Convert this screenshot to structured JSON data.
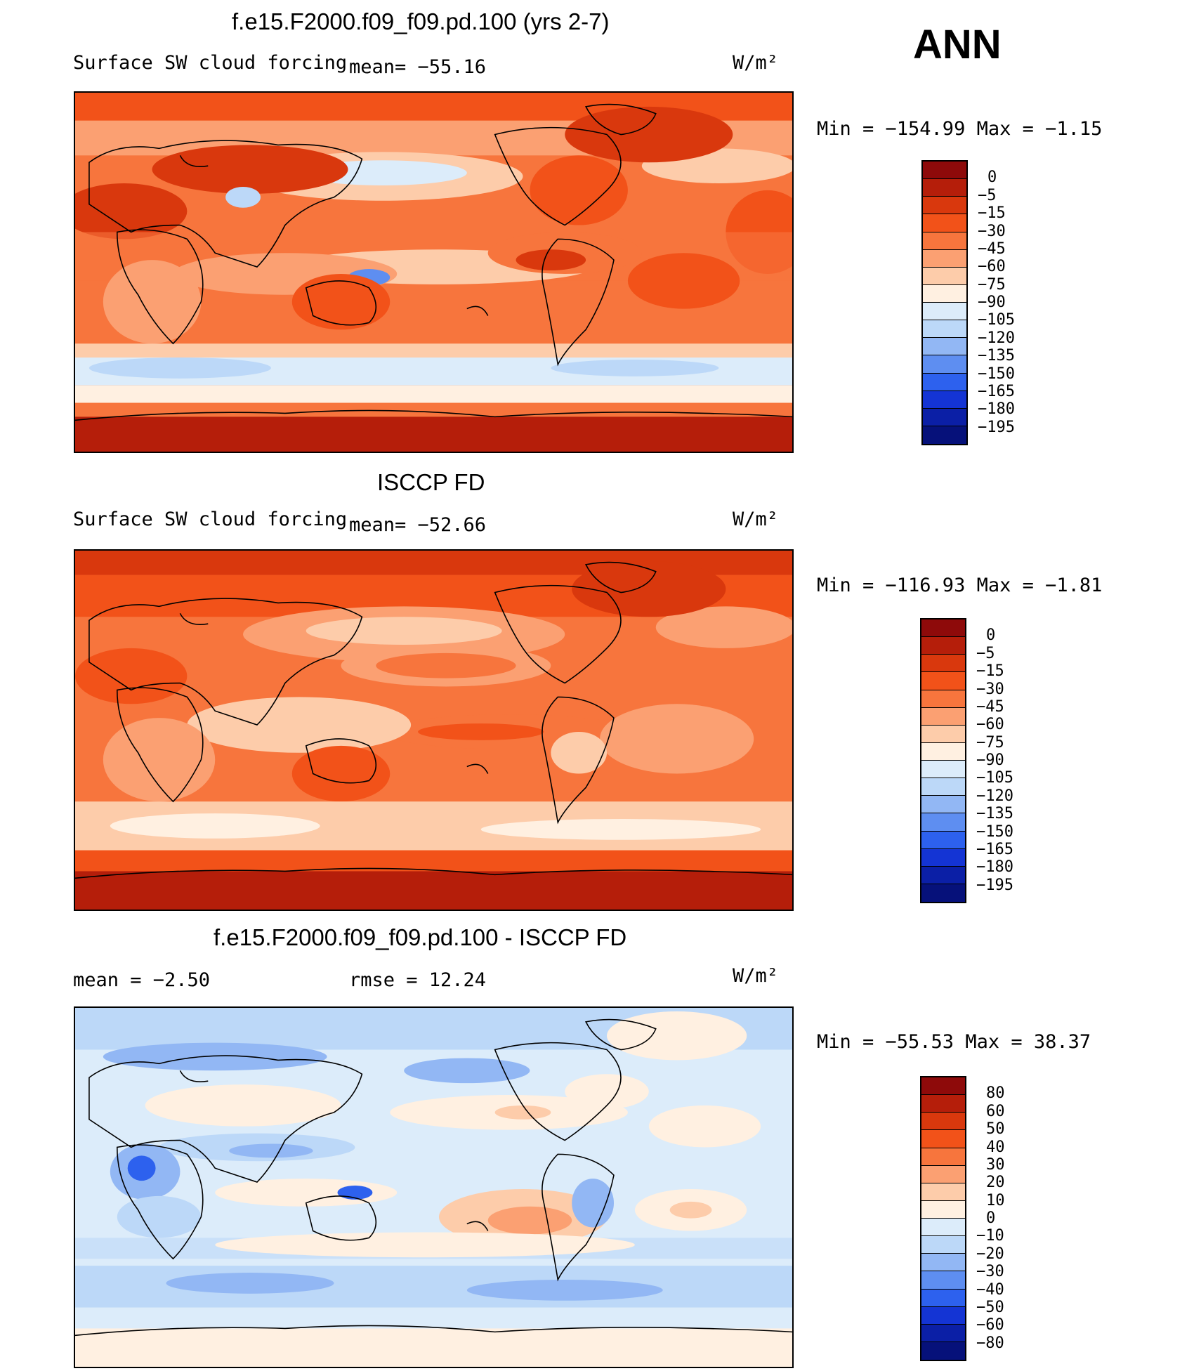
{
  "annotation": "ANN",
  "units_label": "W/m²",
  "panels": [
    {
      "title": "f.e15.F2000.f09_f09.pd.100 (yrs 2-7)",
      "left_label": "Surface  SW  cloud  forcing",
      "center_label": "mean=  −55.16",
      "units": "W/m²",
      "minmax": "Min  =  −154.99  Max  =   −1.15",
      "colorbar": {
        "colors": [
          "#8e0a0a",
          "#b51e0a",
          "#d9380d",
          "#f25219",
          "#f7753d",
          "#fba072",
          "#fdccaa",
          "#fff0e1",
          "#dcecfa",
          "#bcd8f8",
          "#92b7f4",
          "#5e8ef1",
          "#2d61ee",
          "#1434d4",
          "#0b1fa6",
          "#06117a"
        ],
        "labels": [
          "0",
          "−5",
          "−15",
          "−30",
          "−45",
          "−60",
          "−75",
          "−90",
          "−105",
          "−120",
          "−135",
          "−150",
          "−165",
          "−180",
          "−195"
        ]
      }
    },
    {
      "title": "ISCCP FD",
      "left_label": "Surface  SW  cloud  forcing",
      "center_label": "mean=  −52.66",
      "units": "W/m²",
      "minmax": "Min  =  −116.93  Max  =   −1.81",
      "colorbar": {
        "colors": [
          "#8e0a0a",
          "#b51e0a",
          "#d9380d",
          "#f25219",
          "#f7753d",
          "#fba072",
          "#fdccaa",
          "#fff0e1",
          "#dcecfa",
          "#bcd8f8",
          "#92b7f4",
          "#5e8ef1",
          "#2d61ee",
          "#1434d4",
          "#0b1fa6",
          "#06117a"
        ],
        "labels": [
          "0",
          "−5",
          "−15",
          "−30",
          "−45",
          "−60",
          "−75",
          "−90",
          "−105",
          "−120",
          "−135",
          "−150",
          "−165",
          "−180",
          "−195"
        ]
      }
    },
    {
      "title": "f.e15.F2000.f09_f09.pd.100 - ISCCP FD",
      "left_label": "mean  =   −2.50",
      "center_label": "rmse  =   12.24",
      "units": "W/m²",
      "minmax": "Min  =  −55.53  Max  =   38.37",
      "colorbar": {
        "colors": [
          "#8e0a0a",
          "#b51e0a",
          "#d9380d",
          "#f25219",
          "#f7753d",
          "#fba072",
          "#fdccaa",
          "#fff0e1",
          "#dcecfa",
          "#bcd8f8",
          "#92b7f4",
          "#5e8ef1",
          "#2d61ee",
          "#1434d4",
          "#0b1fa6",
          "#06117a"
        ],
        "labels": [
          "80",
          "60",
          "50",
          "40",
          "30",
          "20",
          "10",
          "0",
          "−10",
          "−20",
          "−30",
          "−40",
          "−50",
          "−60",
          "−80"
        ]
      }
    }
  ]
}
